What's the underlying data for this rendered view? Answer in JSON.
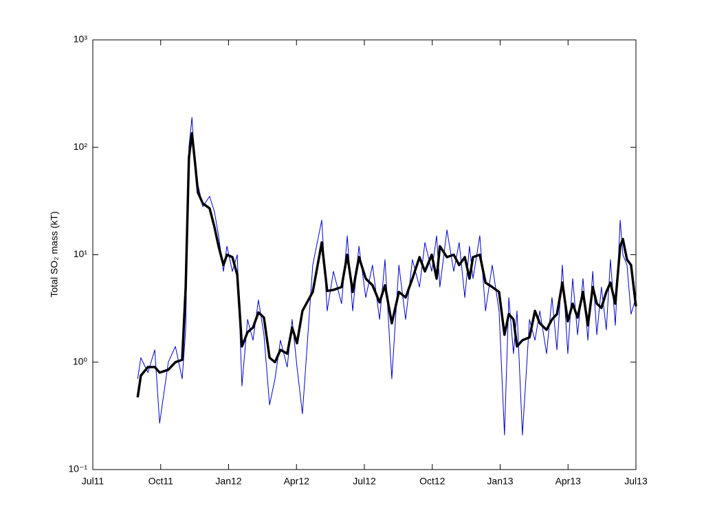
{
  "chart_data": {
    "type": "line",
    "ylabel": "Total SO₂ mass (kT)",
    "log_y": true,
    "grid": false,
    "xlim": [
      2011.5,
      2013.5
    ],
    "xticks": [
      {
        "value": 2011.5,
        "label": "Jul11"
      },
      {
        "value": 2011.75,
        "label": "Oct11"
      },
      {
        "value": 2012,
        "label": "Jan12"
      },
      {
        "value": 2012.25,
        "label": "Apr12"
      },
      {
        "value": 2012.5,
        "label": "Jul12"
      },
      {
        "value": 2012.75,
        "label": "Oct12"
      },
      {
        "value": 2013,
        "label": "Jan13"
      },
      {
        "value": 2013.25,
        "label": "Apr13"
      },
      {
        "value": 2013.5,
        "label": "Jul13"
      }
    ],
    "ylim": [
      0.1,
      1000
    ],
    "yticks": [
      {
        "value": 0.1,
        "label": "10⁻¹"
      },
      {
        "value": 1,
        "label": "10⁰"
      },
      {
        "value": 10,
        "label": "10¹"
      },
      {
        "value": 100,
        "label": "10²"
      },
      {
        "value": 1000,
        "label": "10³"
      }
    ],
    "x": [
      2011.665,
      2011.677,
      2011.703,
      2011.728,
      2011.746,
      2011.778,
      2011.804,
      2011.829,
      2011.842,
      2011.854,
      2011.865,
      2011.877,
      2011.887,
      2011.905,
      2011.93,
      2011.948,
      2011.963,
      2011.981,
      2011.994,
      2012.014,
      2012.032,
      2012.049,
      2012.07,
      2012.09,
      2012.11,
      2012.13,
      2012.151,
      2012.171,
      2012.191,
      2012.216,
      2012.234,
      2012.252,
      2012.272,
      2012.31,
      2012.343,
      2012.363,
      2012.386,
      2012.416,
      2012.437,
      2012.457,
      2012.48,
      2012.505,
      2012.53,
      2012.556,
      2012.576,
      2012.601,
      2012.627,
      2012.652,
      2012.677,
      2012.703,
      2012.723,
      2012.748,
      2012.766,
      2012.778,
      2012.804,
      2012.829,
      2012.849,
      2012.87,
      2012.887,
      2012.9,
      2012.925,
      2012.946,
      2012.971,
      2012.996,
      2013.016,
      2013.032,
      2013.049,
      2013.062,
      2013.082,
      2013.108,
      2013.128,
      2013.146,
      2013.171,
      2013.191,
      2013.209,
      2013.229,
      2013.249,
      2013.267,
      2013.285,
      2013.305,
      2013.323,
      2013.341,
      2013.356,
      2013.373,
      2013.391,
      2013.406,
      2013.424,
      2013.442,
      2013.452,
      2013.467,
      2013.482,
      2013.5
    ],
    "series": [
      {
        "color": "#0000cc",
        "width": 1,
        "values": [
          0.7,
          1.1,
          0.8,
          1.3,
          0.27,
          1.0,
          1.4,
          0.7,
          2,
          100,
          190,
          60,
          45,
          28,
          35,
          25,
          15,
          7,
          12,
          7,
          10,
          0.6,
          2.5,
          1.6,
          3.8,
          1.8,
          0.4,
          0.7,
          1.6,
          0.9,
          2.5,
          0.9,
          0.33,
          8,
          21,
          3,
          7,
          3.5,
          15,
          3,
          12,
          4,
          8,
          2.5,
          9,
          0.7,
          8,
          2.5,
          9,
          5,
          13,
          7,
          15,
          5,
          17,
          7,
          13,
          4,
          12,
          6,
          15,
          3,
          8,
          3,
          0.21,
          4,
          1.2,
          3,
          0.21,
          2.5,
          1.6,
          3,
          1.2,
          4,
          1.3,
          8,
          1.2,
          6,
          1.8,
          6,
          1.6,
          7,
          1.8,
          5,
          2,
          9,
          2.2,
          21,
          10,
          8,
          2.8,
          4
        ]
      },
      {
        "color": "#000000",
        "width": 3.5,
        "values": [
          0.47,
          0.75,
          0.9,
          0.9,
          0.8,
          0.85,
          1.0,
          1.05,
          5,
          80,
          135,
          70,
          38,
          30,
          27,
          18,
          12,
          8,
          10,
          9.5,
          6.5,
          1.4,
          1.9,
          2.1,
          2.9,
          2.6,
          1.1,
          1.0,
          1.3,
          1.2,
          2.1,
          1.5,
          3,
          4.5,
          13,
          4.6,
          4.7,
          5,
          10,
          4.5,
          9.5,
          6,
          5.2,
          3.6,
          5.2,
          2.3,
          4.5,
          4.0,
          6,
          9.5,
          7,
          10,
          6,
          12,
          9.5,
          10,
          8,
          9.5,
          6,
          9.5,
          10,
          5.5,
          5,
          4.5,
          1.8,
          2.8,
          2.5,
          1.4,
          1.6,
          1.7,
          3.0,
          2.3,
          2.0,
          2.5,
          2.8,
          5.5,
          2.4,
          3.5,
          2.6,
          4.5,
          2.2,
          5,
          3.5,
          3.2,
          4.5,
          5.5,
          3.5,
          12,
          14,
          9,
          8,
          3.3
        ]
      }
    ]
  }
}
